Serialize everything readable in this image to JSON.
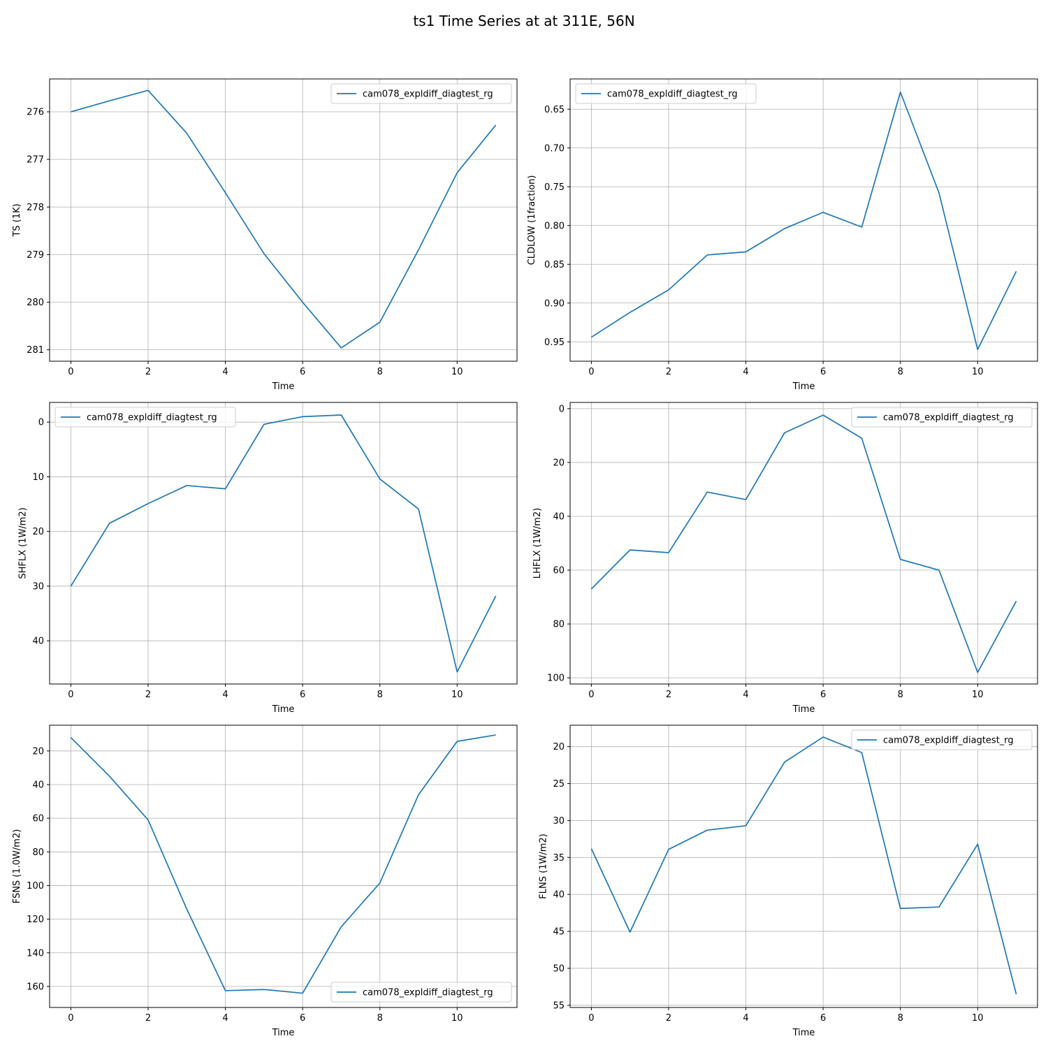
{
  "figure": {
    "title": "ts1 Time Series at at 311E, 56N"
  },
  "colors": {
    "series": "#1f77b4",
    "grid": "#b0b0b0",
    "axes": "#000000",
    "legend_border": "#cccccc"
  },
  "chart_data": [
    {
      "type": "line",
      "ylabel": "TS (1K)",
      "xlabel": "Time",
      "y_inverted": true,
      "grid": true,
      "legend_position": "upper right",
      "xlim": [
        -0.55,
        11.55
      ],
      "ylim": [
        281.24,
        275.31
      ],
      "xticks": [
        0,
        2,
        4,
        6,
        8,
        10
      ],
      "yticks": [
        276,
        277,
        278,
        279,
        280,
        281
      ],
      "series": [
        {
          "name": "cam078_expldiff_diagtest_rg",
          "x": [
            0,
            1,
            2,
            3,
            4,
            5,
            6,
            7,
            8,
            9,
            10,
            11
          ],
          "y": [
            276.0,
            275.77,
            275.55,
            276.45,
            277.7,
            278.98,
            280.0,
            280.96,
            280.42,
            278.9,
            277.28,
            276.28
          ]
        }
      ]
    },
    {
      "type": "line",
      "ylabel": "CLDLOW (1fraction)",
      "xlabel": "Time",
      "y_inverted": true,
      "grid": true,
      "legend_position": "upper left",
      "xlim": [
        -0.55,
        11.55
      ],
      "ylim": [
        0.975,
        0.611
      ],
      "xticks": [
        0,
        2,
        4,
        6,
        8,
        10
      ],
      "yticks": [
        0.65,
        0.7,
        0.75,
        0.8,
        0.85,
        0.9,
        0.95
      ],
      "ytick_labels": [
        "0.65",
        "0.70",
        "0.75",
        "0.80",
        "0.85",
        "0.90",
        "0.95"
      ],
      "series": [
        {
          "name": "cam078_expldiff_diagtest_rg",
          "x": [
            0,
            1,
            2,
            3,
            4,
            5,
            6,
            7,
            8,
            9,
            10,
            11
          ],
          "y": [
            0.944,
            0.912,
            0.883,
            0.838,
            0.834,
            0.804,
            0.783,
            0.802,
            0.628,
            0.758,
            0.96,
            0.859
          ]
        }
      ]
    },
    {
      "type": "line",
      "ylabel": "SHFLX (1W/m2)",
      "xlabel": "Time",
      "y_inverted": true,
      "grid": true,
      "legend_position": "upper left",
      "xlim": [
        -0.55,
        11.55
      ],
      "ylim": [
        47.9,
        -3.6
      ],
      "xticks": [
        0,
        2,
        4,
        6,
        8,
        10
      ],
      "yticks": [
        0,
        10,
        20,
        30,
        40
      ],
      "series": [
        {
          "name": "cam078_expldiff_diagtest_rg",
          "x": [
            0,
            1,
            2,
            3,
            4,
            5,
            6,
            7,
            8,
            9,
            10,
            11
          ],
          "y": [
            30.0,
            18.5,
            14.9,
            11.6,
            12.2,
            0.4,
            -1.0,
            -1.3,
            10.4,
            15.9,
            45.7,
            31.8
          ]
        }
      ]
    },
    {
      "type": "line",
      "ylabel": "LHFLX (1W/m2)",
      "xlabel": "Time",
      "y_inverted": true,
      "grid": true,
      "legend_position": "upper right",
      "xlim": [
        -0.55,
        11.55
      ],
      "ylim": [
        102.3,
        -2.3
      ],
      "xticks": [
        0,
        2,
        4,
        6,
        8,
        10
      ],
      "yticks": [
        0,
        20,
        40,
        60,
        80,
        100
      ],
      "series": [
        {
          "name": "cam078_expldiff_diagtest_rg",
          "x": [
            0,
            1,
            2,
            3,
            4,
            5,
            6,
            7,
            8,
            9,
            10,
            11
          ],
          "y": [
            67.0,
            52.5,
            53.5,
            31.0,
            33.8,
            9.0,
            2.4,
            11.0,
            56.0,
            60.0,
            98.0,
            71.5
          ]
        }
      ]
    },
    {
      "type": "line",
      "ylabel": "FSNS (1.0W/m2)",
      "xlabel": "Time",
      "y_inverted": true,
      "grid": true,
      "legend_position": "lower right",
      "xlim": [
        -0.55,
        11.55
      ],
      "ylim": [
        172.5,
        4.7
      ],
      "xticks": [
        0,
        2,
        4,
        6,
        8,
        10
      ],
      "yticks": [
        20,
        40,
        60,
        80,
        100,
        120,
        140,
        160
      ],
      "series": [
        {
          "name": "cam078_expldiff_diagtest_rg",
          "x": [
            0,
            1,
            2,
            3,
            4,
            5,
            6,
            7,
            8,
            9,
            10,
            11
          ],
          "y": [
            12.0,
            35.0,
            61.0,
            114.0,
            162.5,
            161.8,
            164.0,
            124.5,
            98.5,
            46.0,
            14.3,
            10.5
          ]
        }
      ]
    },
    {
      "type": "line",
      "ylabel": "FLNS (1W/m2)",
      "xlabel": "Time",
      "y_inverted": true,
      "grid": true,
      "legend_position": "upper right",
      "xlim": [
        -0.55,
        11.55
      ],
      "ylim": [
        55.3,
        17.1
      ],
      "xticks": [
        0,
        2,
        4,
        6,
        8,
        10
      ],
      "yticks": [
        20,
        25,
        30,
        35,
        40,
        45,
        50,
        55
      ],
      "series": [
        {
          "name": "cam078_expldiff_diagtest_rg",
          "x": [
            0,
            1,
            2,
            3,
            4,
            5,
            6,
            7,
            8,
            9,
            10,
            11
          ],
          "y": [
            33.8,
            45.1,
            33.9,
            31.3,
            30.7,
            22.1,
            18.7,
            20.8,
            41.9,
            41.7,
            33.2,
            53.5
          ]
        }
      ]
    }
  ]
}
